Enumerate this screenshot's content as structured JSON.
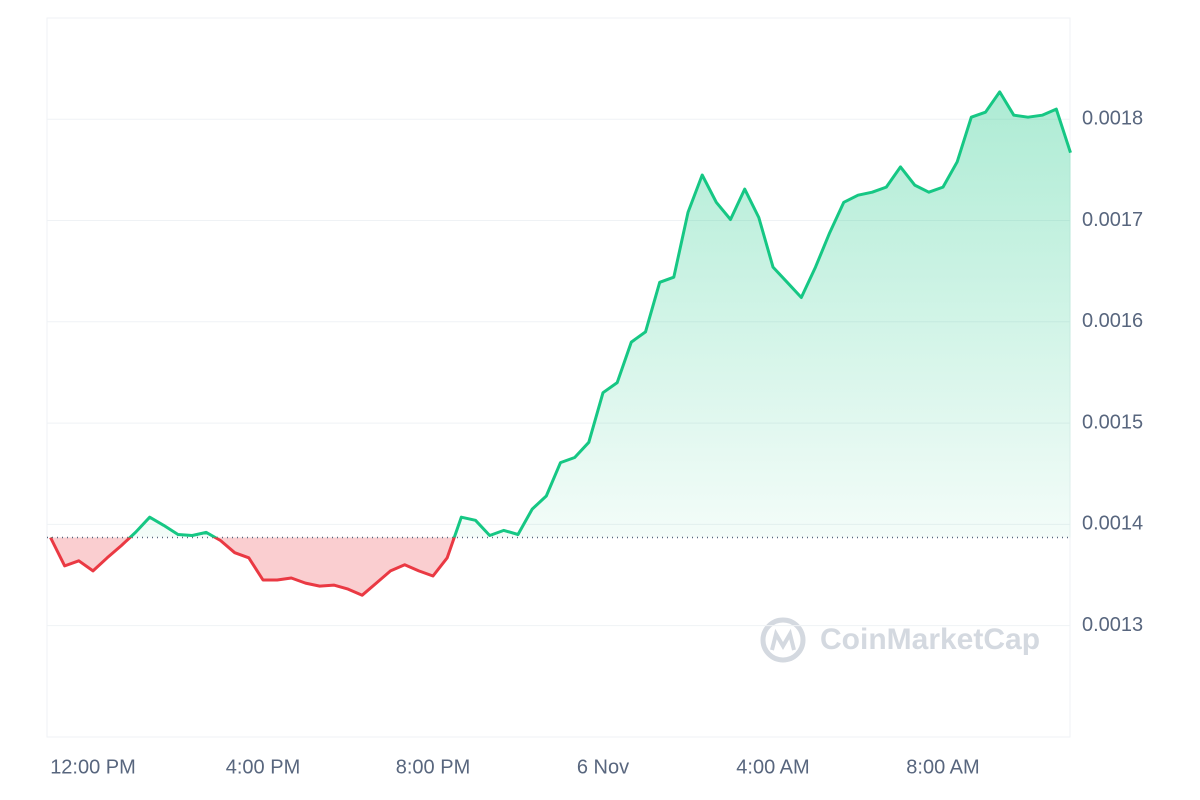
{
  "chart_data": {
    "type": "line",
    "x": [
      "5 Nov 11:00",
      "5 Nov 11:20",
      "5 Nov 11:40",
      "5 Nov 12:00",
      "5 Nov 12:20",
      "5 Nov 12:40",
      "5 Nov 13:00",
      "5 Nov 13:20",
      "5 Nov 13:40",
      "5 Nov 14:00",
      "5 Nov 14:20",
      "5 Nov 14:40",
      "5 Nov 15:00",
      "5 Nov 15:20",
      "5 Nov 15:40",
      "5 Nov 16:00",
      "5 Nov 16:20",
      "5 Nov 16:40",
      "5 Nov 17:00",
      "5 Nov 17:20",
      "5 Nov 17:40",
      "5 Nov 18:00",
      "5 Nov 18:20",
      "5 Nov 18:40",
      "5 Nov 19:00",
      "5 Nov 19:20",
      "5 Nov 19:40",
      "5 Nov 20:00",
      "5 Nov 20:20",
      "5 Nov 20:40",
      "5 Nov 21:00",
      "5 Nov 21:20",
      "5 Nov 21:40",
      "5 Nov 22:00",
      "5 Nov 22:20",
      "5 Nov 22:40",
      "5 Nov 23:00",
      "5 Nov 23:20",
      "5 Nov 23:40",
      "6 Nov 00:00",
      "6 Nov 00:20",
      "6 Nov 00:40",
      "6 Nov 01:00",
      "6 Nov 01:20",
      "6 Nov 01:40",
      "6 Nov 02:00",
      "6 Nov 02:20",
      "6 Nov 02:40",
      "6 Nov 03:00",
      "6 Nov 03:20",
      "6 Nov 03:40",
      "6 Nov 04:00",
      "6 Nov 04:20",
      "6 Nov 04:40",
      "6 Nov 05:00",
      "6 Nov 05:20",
      "6 Nov 05:40",
      "6 Nov 06:00",
      "6 Nov 06:20",
      "6 Nov 06:40",
      "6 Nov 07:00",
      "6 Nov 07:20",
      "6 Nov 07:40",
      "6 Nov 08:00",
      "6 Nov 08:20",
      "6 Nov 08:40",
      "6 Nov 09:00",
      "6 Nov 09:20",
      "6 Nov 09:40",
      "6 Nov 10:00",
      "6 Nov 10:20",
      "6 Nov 10:40",
      "6 Nov 11:00"
    ],
    "values": [
      0.001387,
      0.001359,
      0.001364,
      0.001354,
      0.001367,
      0.001379,
      0.001392,
      0.001407,
      0.001399,
      0.00139,
      0.001389,
      0.001392,
      0.001384,
      0.001372,
      0.001367,
      0.001345,
      0.001345,
      0.001347,
      0.001342,
      0.001339,
      0.00134,
      0.001336,
      0.00133,
      0.001342,
      0.001354,
      0.00136,
      0.001354,
      0.001349,
      0.001367,
      0.001407,
      0.001404,
      0.001389,
      0.001394,
      0.00139,
      0.001415,
      0.001428,
      0.001461,
      0.001466,
      0.001481,
      0.00153,
      0.00154,
      0.00158,
      0.00159,
      0.001639,
      0.001644,
      0.001708,
      0.001745,
      0.001718,
      0.001701,
      0.001731,
      0.001703,
      0.001654,
      0.001639,
      0.001624,
      0.001654,
      0.001688,
      0.001718,
      0.001725,
      0.001728,
      0.001733,
      0.001753,
      0.001735,
      0.001728,
      0.001733,
      0.001758,
      0.001802,
      0.001807,
      0.001827,
      0.001804,
      0.001802,
      0.001804,
      0.00181,
      0.001767
    ],
    "baseline": 0.001387,
    "up_color": "#16c784",
    "down_color": "#ea3943",
    "ylim": [
      0.00119,
      0.0019
    ],
    "yticks": [
      0.0013,
      0.0014,
      0.0015,
      0.0016,
      0.0017,
      0.0018
    ],
    "xticks": [
      {
        "value": "5 Nov 12:00",
        "label": "12:00 PM"
      },
      {
        "value": "5 Nov 16:00",
        "label": "4:00 PM"
      },
      {
        "value": "5 Nov 20:00",
        "label": "8:00 PM"
      },
      {
        "value": "6 Nov 00:00",
        "label": "6 Nov"
      },
      {
        "value": "6 Nov 04:00",
        "label": "4:00 AM"
      },
      {
        "value": "6 Nov 08:00",
        "label": "8:00 AM"
      }
    ],
    "grid": true,
    "watermark": "CoinMarketCap"
  }
}
